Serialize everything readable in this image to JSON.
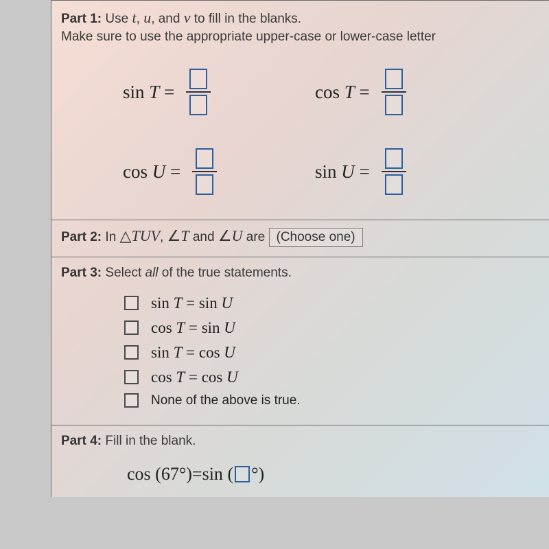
{
  "part1": {
    "label": "Part 1:",
    "instr1": " Use ",
    "vars": [
      "t",
      "u",
      "v"
    ],
    "instr1b": " to fill in the blanks.",
    "instr2": "Make sure to use the appropriate upper-case or lower-case letter",
    "eqs": [
      {
        "func": "sin",
        "arg": "T"
      },
      {
        "func": "cos",
        "arg": "T"
      },
      {
        "func": "cos",
        "arg": "U"
      },
      {
        "func": "sin",
        "arg": "U"
      }
    ]
  },
  "part2": {
    "label": "Part 2:",
    "pre": " In ",
    "tri": "TUV",
    "mid": ", ",
    "ang1": "T",
    "and": " and ",
    "ang2": "U",
    "are": " are ",
    "select": "(Choose one)"
  },
  "part3": {
    "label": "Part 3:",
    "instr": " Select ",
    "em": "all",
    "instr2": " of the true statements.",
    "stmts": [
      "sin T = sin U",
      "cos T = sin U",
      "sin T = cos U",
      "cos T = cos U"
    ],
    "none": "None of the above is true."
  },
  "part4": {
    "label": "Part 4:",
    "instr": " Fill in the blank.",
    "lhs_func": "cos",
    "lhs_arg": "67°",
    "eq": " = ",
    "rhs_func": "sin",
    "deg": "°"
  },
  "colors": {
    "box_border": "#2b5fa0",
    "rule": "#6b6b6b",
    "text": "#333333"
  }
}
